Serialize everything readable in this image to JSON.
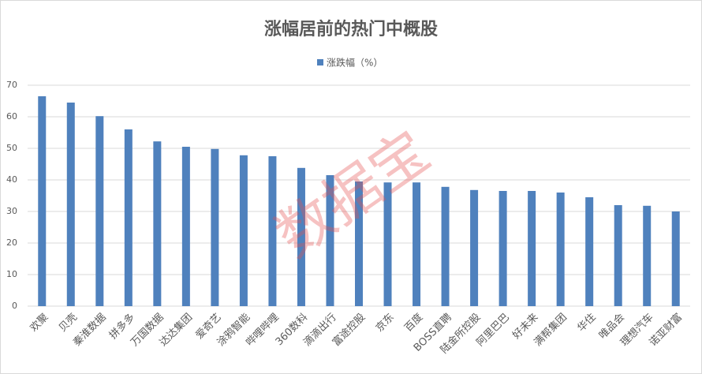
{
  "chart_data": {
    "type": "bar",
    "title": "涨幅居前的热门中概股",
    "legend": "涨跌幅（%）",
    "color": "#4f81bd",
    "watermark": "数据宝",
    "categories": [
      "欢聚",
      "贝壳",
      "秦淮数据",
      "拼多多",
      "万国数据",
      "达达集团",
      "爱奇艺",
      "涂鸦智能",
      "哔哩哔哩",
      "360数科",
      "滴滴出行",
      "富途控股",
      "京东",
      "百度",
      "BOSS直聘",
      "陆金所控股",
      "阿里巴巴",
      "好未来",
      "满帮集团",
      "华住",
      "唯品会",
      "理想汽车",
      "诺亚财富"
    ],
    "values": [
      66.5,
      64.5,
      60.2,
      56,
      52.2,
      50.5,
      49.8,
      47.8,
      47.5,
      43.8,
      41.5,
      39.5,
      39.2,
      39.2,
      37.8,
      36.8,
      36.5,
      36.5,
      36,
      34.5,
      32,
      31.8,
      30
    ],
    "ylim": [
      0,
      70
    ],
    "yticks": [
      0,
      10,
      20,
      30,
      40,
      50,
      60,
      70
    ],
    "grid": true
  }
}
